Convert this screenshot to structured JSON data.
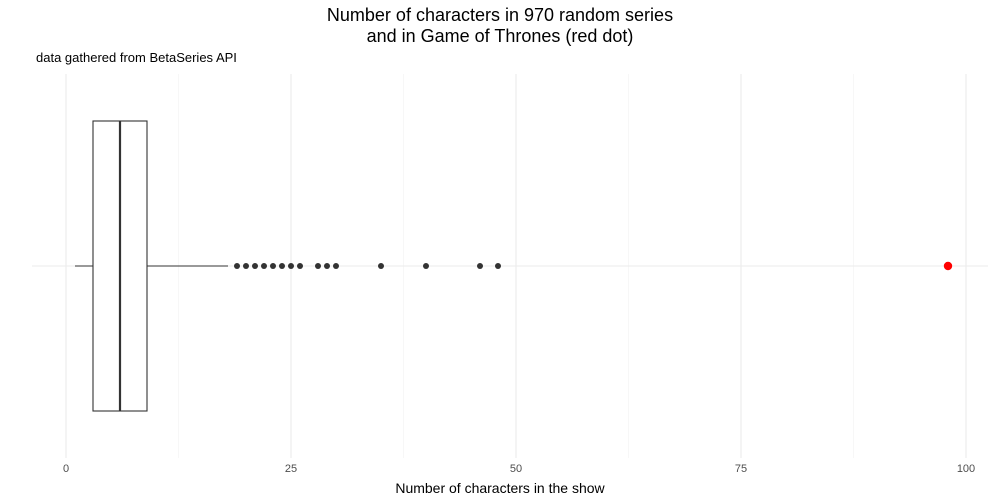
{
  "chart_data": {
    "type": "boxplot",
    "title_line1": "Number of characters in 970 random series",
    "title_line2": "and in Game of Thrones (red dot)",
    "subtitle": "data gathered from BetaSeries API",
    "xlabel": "Number of characters in the show",
    "xlim": [
      -1.5,
      102
    ],
    "x_ticks": [
      0,
      25,
      50,
      75,
      100
    ],
    "x_minor": [
      12.5,
      37.5,
      62.5,
      87.5
    ],
    "box": {
      "whisker_low": 1,
      "q1": 3,
      "median": 6,
      "q3": 9,
      "whisker_high": 18
    },
    "outliers": [
      19,
      20,
      21,
      22,
      23,
      24,
      25,
      26,
      28,
      29,
      30,
      35,
      40,
      46,
      48
    ],
    "highlight": {
      "value": 98,
      "color": "#ff0000"
    },
    "grid": true
  }
}
